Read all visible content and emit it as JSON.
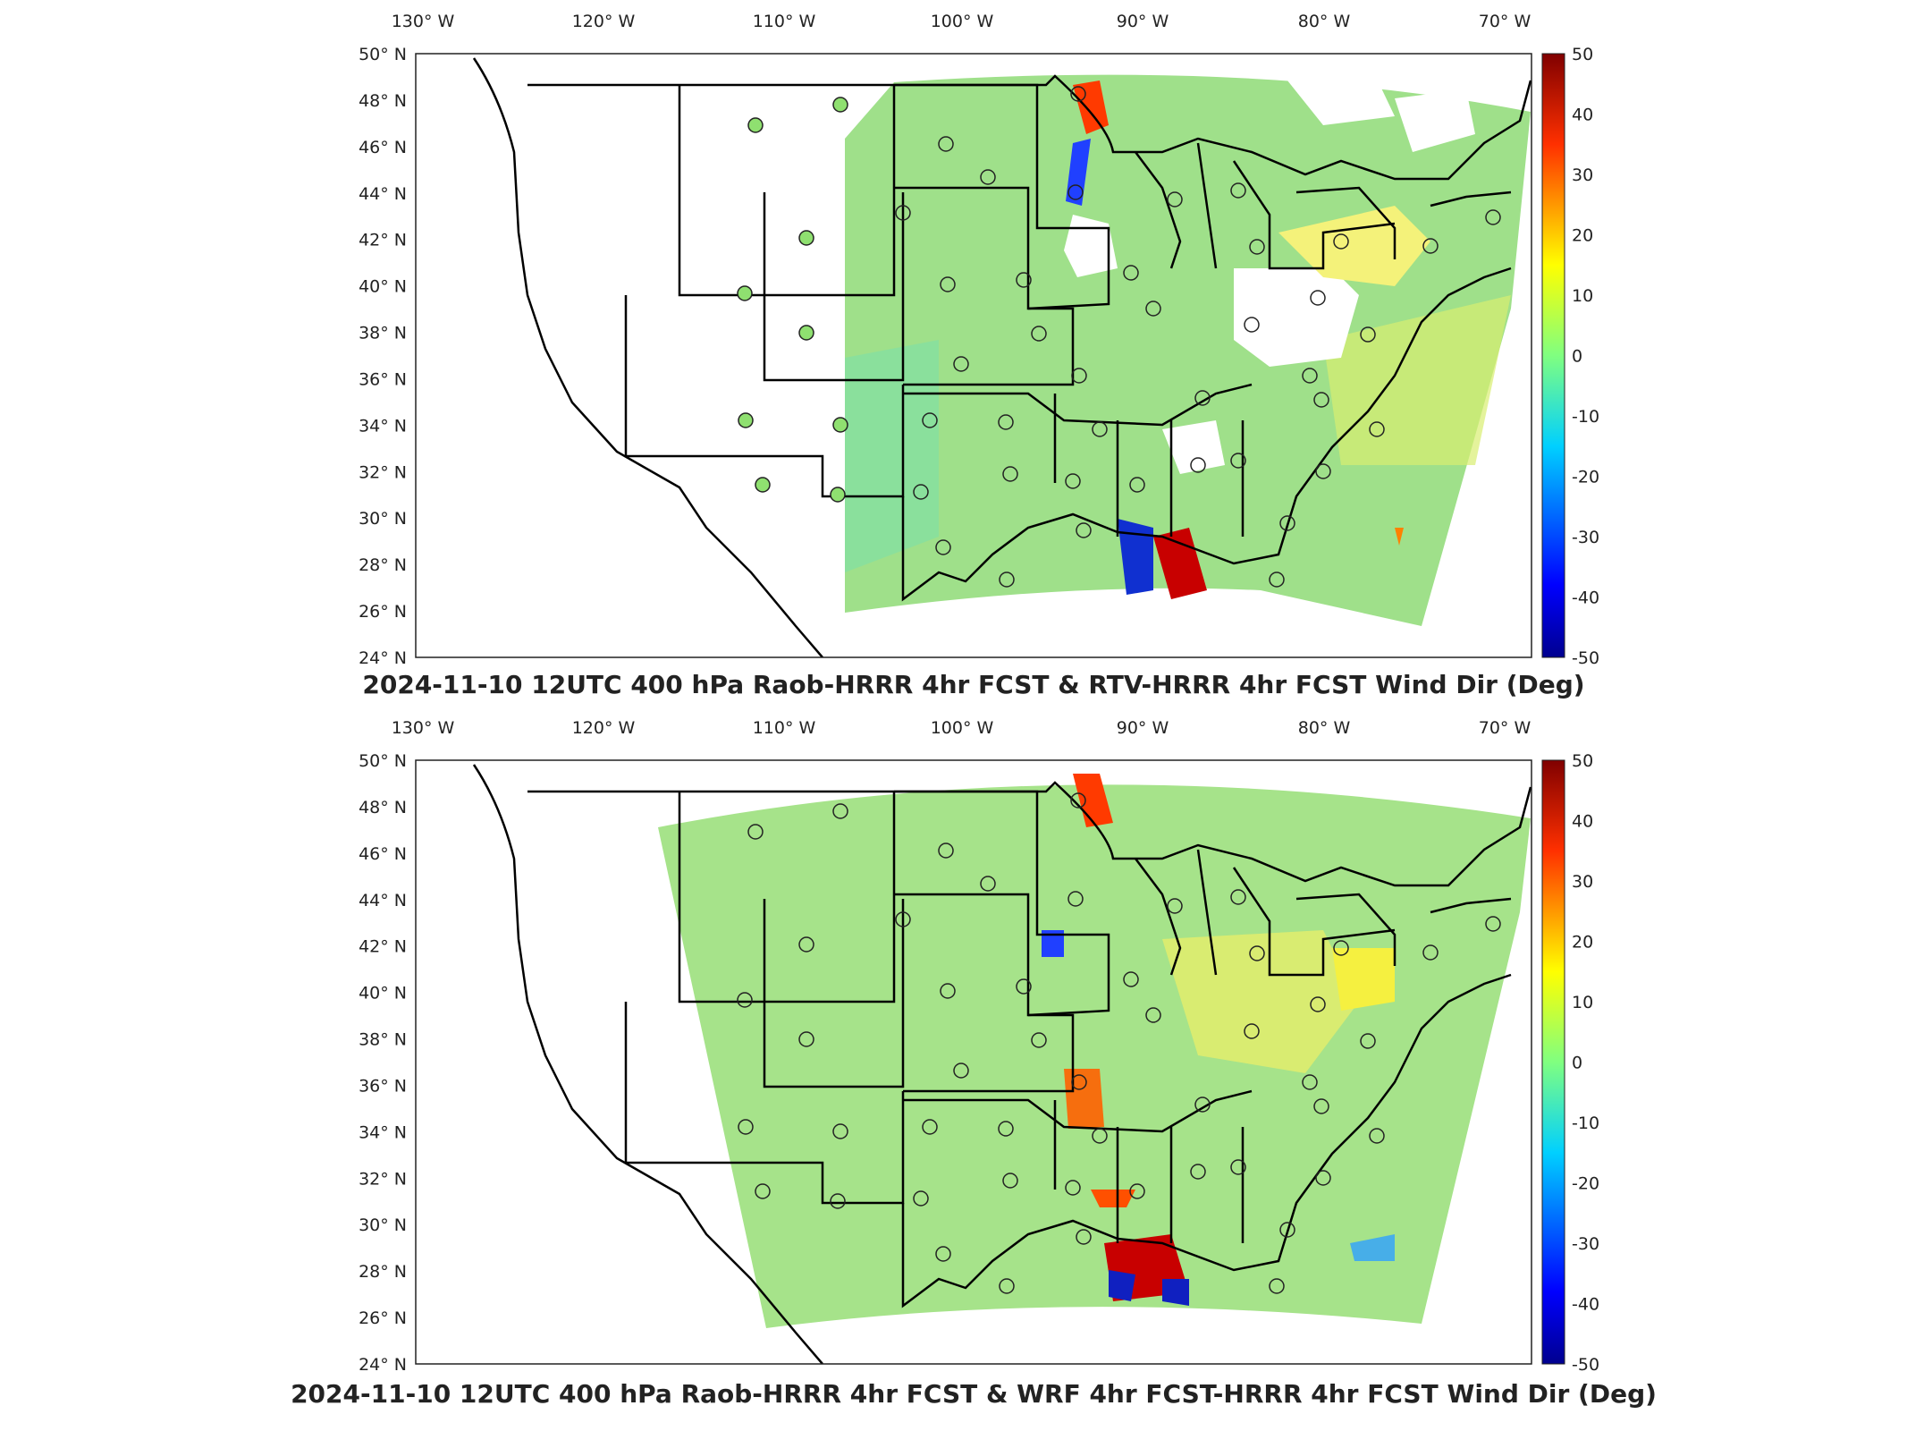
{
  "panels": [
    {
      "id": "top",
      "title": "2024-11-10 12UTC 400 hPa Raob-HRRR 4hr FCST & RTV-HRRR 4hr FCST Wind Dir (Deg)",
      "x_ticks": [
        "130° W",
        "120° W",
        "110° W",
        "100° W",
        "90° W",
        "80° W",
        "70° W"
      ],
      "y_ticks": [
        "50° N",
        "48° N",
        "46° N",
        "44° N",
        "42° N",
        "40° N",
        "38° N",
        "36° N",
        "34° N",
        "32° N",
        "30° N",
        "28° N",
        "26° N",
        "24° N"
      ],
      "colorbar": {
        "min": -50,
        "max": 50,
        "ticks": [
          "50",
          "40",
          "30",
          "20",
          "10",
          "0",
          "-10",
          "-20",
          "-30",
          "-40",
          "-50"
        ]
      }
    },
    {
      "id": "bottom",
      "title": "2024-11-10 12UTC 400 hPa Raob-HRRR 4hr FCST & WRF 4hr FCST-HRRR 4hr FCST Wind Dir (Deg)",
      "x_ticks": [
        "130° W",
        "120° W",
        "110° W",
        "100° W",
        "90° W",
        "80° W",
        "70° W"
      ],
      "y_ticks": [
        "50° N",
        "48° N",
        "46° N",
        "44° N",
        "42° N",
        "40° N",
        "38° N",
        "36° N",
        "34° N",
        "32° N",
        "30° N",
        "28° N",
        "26° N",
        "24° N"
      ],
      "colorbar": {
        "min": -50,
        "max": 50,
        "ticks": [
          "50",
          "40",
          "30",
          "20",
          "10",
          "0",
          "-10",
          "-20",
          "-30",
          "-40",
          "-50"
        ]
      }
    }
  ],
  "colors": {
    "field_base": "#9fe08a",
    "station_fill": "#8fe070",
    "colormap": [
      "#00008f",
      "#0000ff",
      "#00bfff",
      "#40ffbf",
      "#9fe06a",
      "#ffff00",
      "#ff8000",
      "#ff0000",
      "#800000"
    ]
  }
}
